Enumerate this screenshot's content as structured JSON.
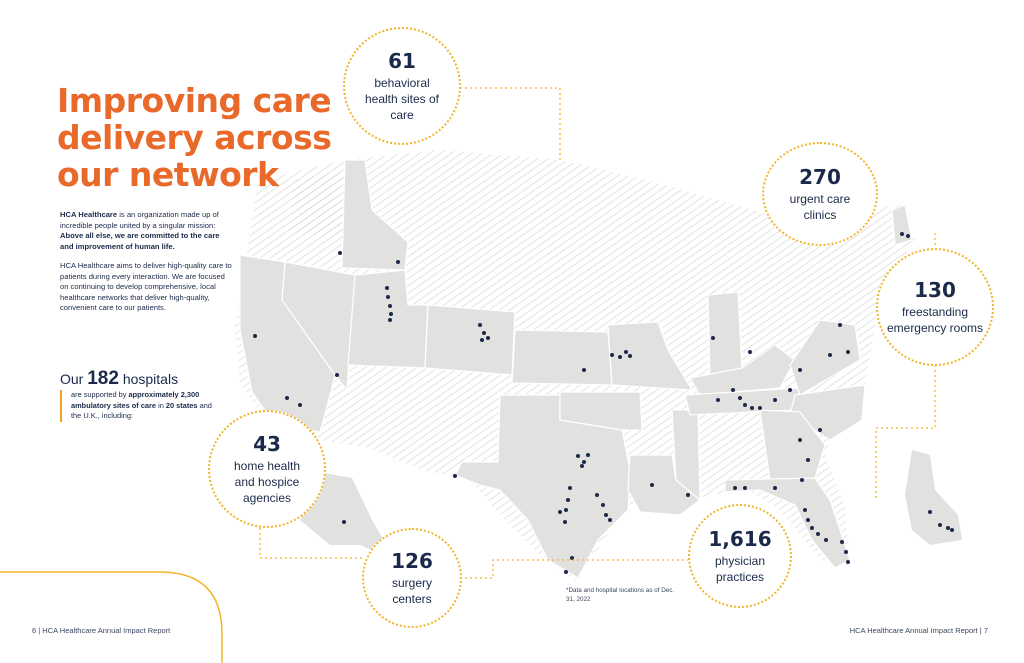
{
  "headline": {
    "line1": "Improving care",
    "line2": "delivery across",
    "line3": "our network"
  },
  "intro": {
    "p1_brand": "HCA Healthcare",
    "p1_text": " is an organization made up of incredible people united by a singular mission: ",
    "p1_bold": "Above all else, we are committed to the care and improvement of human life.",
    "p2": "HCA Healthcare aims to deliver high-quality care to patients during every interaction. We are focused on continuing to develop comprehensive, local healthcare networks that deliver high-quality, convenient care to our patients."
  },
  "hospitals": {
    "prefix": "Our",
    "count": "182",
    "suffix": "hospitals",
    "detail_a": "are supported by ",
    "detail_bold_a": "approximately 2,300 ambulatory sites of care",
    "detail_b": " in ",
    "detail_bold_b": "20 states",
    "detail_c": " and the U.K., including:"
  },
  "stats": {
    "behavioral": {
      "num": "61",
      "label": "behavioral health sites of care"
    },
    "urgent": {
      "num": "270",
      "label": "urgent care clinics"
    },
    "emergency": {
      "num": "130",
      "label": "freestanding emergency rooms"
    },
    "home": {
      "num": "43",
      "label": "home health and hospice agencies"
    },
    "surgery": {
      "num": "126",
      "label": "surgery centers"
    },
    "physician": {
      "num": "1,616",
      "label": "physician practices"
    }
  },
  "footnote": "*Data and hospital locations as of Dec. 31, 2022",
  "footer": {
    "left": "6  |  HCA Healthcare Annual Impact Report",
    "right": "HCA Healthcare Annual Impact Report  |  7"
  },
  "colors": {
    "accent_orange": "#e8692a",
    "accent_yellow": "#f2b52a",
    "navy": "#1b2a4a",
    "map_gray": "#e1e1df"
  }
}
